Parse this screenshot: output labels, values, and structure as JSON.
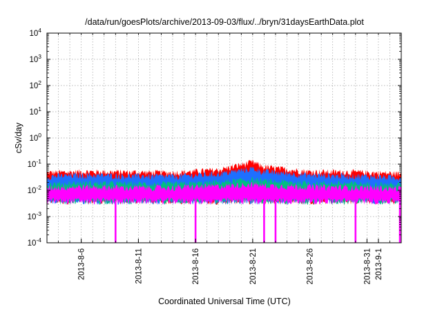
{
  "chart_data": {
    "type": "area",
    "title": "/data/run/goesPlots/archive/2013-09-03/flux/../bryn/31daysEarthData.plot",
    "xlabel": "Coordinated Universal Time (UTC)",
    "ylabel": "cSv/day",
    "yscale": "log",
    "ylim": [
      0.0001,
      10000
    ],
    "xlim": [
      "2013-08-03",
      "2013-09-03"
    ],
    "grid": true,
    "legend": "none",
    "y_ticks": [
      {
        "base": "10",
        "exp": "-4",
        "value": 0.0001
      },
      {
        "base": "10",
        "exp": "-3",
        "value": 0.001
      },
      {
        "base": "10",
        "exp": "-2",
        "value": 0.01
      },
      {
        "base": "10",
        "exp": "-1",
        "value": 0.1
      },
      {
        "base": "10",
        "exp": "0",
        "value": 1
      },
      {
        "base": "10",
        "exp": "1",
        "value": 10
      },
      {
        "base": "10",
        "exp": "2",
        "value": 100
      },
      {
        "base": "10",
        "exp": "3",
        "value": 1000
      },
      {
        "base": "10",
        "exp": "4",
        "value": 10000
      }
    ],
    "x_ticks": [
      {
        "label": "2013-8-6",
        "date": "2013-08-06"
      },
      {
        "label": "2013-8-11",
        "date": "2013-08-11"
      },
      {
        "label": "2013-8-16",
        "date": "2013-08-16"
      },
      {
        "label": "2013-8-21",
        "date": "2013-08-21"
      },
      {
        "label": "2013-8-26",
        "date": "2013-08-26"
      },
      {
        "label": "2013-8-31",
        "date": "2013-08-31"
      },
      {
        "label": "2013-9-1",
        "date": "2013-09-01"
      }
    ],
    "series": [
      {
        "color": "#ff0000",
        "x": [
          "2013-08-03",
          "2013-08-06",
          "2013-08-10",
          "2013-08-14",
          "2013-08-18",
          "2013-08-21",
          "2013-08-22",
          "2013-08-26",
          "2013-08-30",
          "2013-09-03"
        ],
        "y": [
          0.055,
          0.06,
          0.058,
          0.055,
          0.07,
          0.14,
          0.09,
          0.06,
          0.058,
          0.05
        ]
      },
      {
        "color": "#1e6fff",
        "x": [
          "2013-08-03",
          "2013-08-06",
          "2013-08-10",
          "2013-08-14",
          "2013-08-18",
          "2013-08-21",
          "2013-08-22",
          "2013-08-26",
          "2013-08-30",
          "2013-09-03"
        ],
        "y": [
          0.04,
          0.045,
          0.042,
          0.04,
          0.05,
          0.08,
          0.06,
          0.045,
          0.042,
          0.036
        ]
      },
      {
        "color": "#00c080",
        "x": [
          "2013-08-03",
          "2013-08-06",
          "2013-08-10",
          "2013-08-14",
          "2013-08-18",
          "2013-08-21",
          "2013-08-22",
          "2013-08-26",
          "2013-08-30",
          "2013-09-03"
        ],
        "y": [
          0.02,
          0.022,
          0.021,
          0.02,
          0.024,
          0.03,
          0.026,
          0.022,
          0.021,
          0.019
        ]
      },
      {
        "color": "#ff00ff",
        "x": [
          "2013-08-03",
          "2013-08-06",
          "2013-08-10",
          "2013-08-14",
          "2013-08-18",
          "2013-08-21",
          "2013-08-22",
          "2013-08-26",
          "2013-08-30",
          "2013-09-03"
        ],
        "y": [
          0.015,
          0.016,
          0.015,
          0.015,
          0.017,
          0.02,
          0.018,
          0.016,
          0.015,
          0.014
        ],
        "lower": 0.004,
        "dropouts": [
          "2013-08-09",
          "2013-08-16",
          "2013-08-22",
          "2013-08-23",
          "2013-08-30",
          "2013-09-03"
        ]
      }
    ]
  }
}
